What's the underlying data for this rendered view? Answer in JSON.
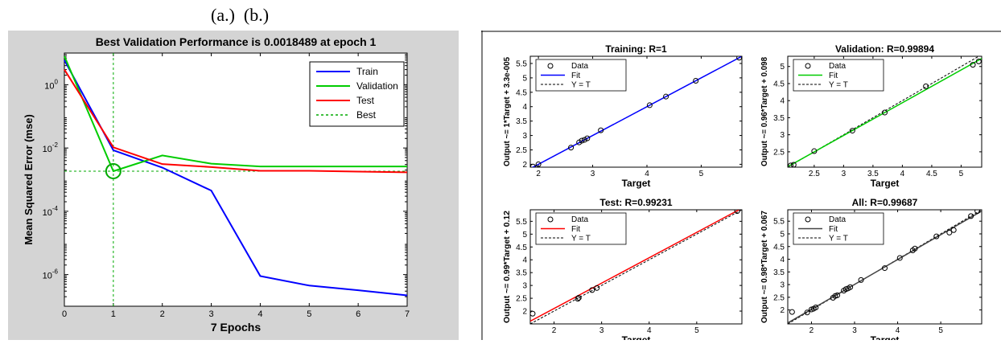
{
  "caption": "(a.)  (b.)",
  "colors": {
    "train": "#0000ff",
    "validation": "#00cc00",
    "test": "#ff0000",
    "best": "#00aa00",
    "all": "#444444",
    "panel_bg": "#d4d4d4",
    "plot_bg": "#ffffff"
  },
  "chart_data": [
    {
      "type": "line",
      "title": "Best Validation Performance is 0.0018489 at epoch 1",
      "xlabel": "7 Epochs",
      "ylabel": "Mean Squared Error  (mse)",
      "xscale": "linear",
      "yscale": "log",
      "xlim": [
        0,
        7
      ],
      "ylim": [
        1e-07,
        10
      ],
      "xticks": [
        "0",
        "1",
        "2",
        "3",
        "4",
        "5",
        "6",
        "7"
      ],
      "yticks": [
        {
          "value": 1,
          "base": "10",
          "exp": "0"
        },
        {
          "value": 0.01,
          "base": "10",
          "exp": "-2"
        },
        {
          "value": 0.0001,
          "base": "10",
          "exp": "-4"
        },
        {
          "value": 1e-06,
          "base": "10",
          "exp": "-6"
        }
      ],
      "x": [
        0,
        1,
        2,
        3,
        4,
        5,
        6,
        7
      ],
      "series": [
        {
          "name": "Train",
          "color_key": "train",
          "values": [
            6,
            0.0085,
            0.0024,
            0.00045,
            9e-07,
            4.5e-07,
            3.2e-07,
            2.2e-07
          ]
        },
        {
          "name": "Validation",
          "color_key": "validation",
          "values": [
            8,
            0.0018489,
            0.0058,
            0.0032,
            0.0026,
            0.0026,
            0.0026,
            0.0026
          ]
        },
        {
          "name": "Test",
          "color_key": "test",
          "values": [
            3,
            0.0105,
            0.0031,
            0.0025,
            0.0019,
            0.0019,
            0.0018,
            0.0017
          ]
        }
      ],
      "legend": {
        "position": "top-right",
        "entries": [
          "Train",
          "Validation",
          "Test",
          "Best"
        ]
      },
      "best": {
        "epoch": 1,
        "value": 0.0018489,
        "name": "Best"
      },
      "grid": false
    },
    {
      "type": "scatter",
      "title": "Training: R=1",
      "xlabel": "Target",
      "ylabel": "Output ~= 1*Target + 3.3e-005",
      "xlim": [
        1.85,
        5.75
      ],
      "ylim": [
        1.9,
        5.75
      ],
      "xticks": [
        2,
        3,
        4,
        5
      ],
      "yticks": [
        2,
        2.5,
        3,
        3.5,
        4,
        4.5,
        5,
        5.5
      ],
      "fit_color_key": "train",
      "fit": {
        "slope": 1,
        "intercept": 3.3e-05
      },
      "points": [
        [
          1.9,
          1.92
        ],
        [
          2.0,
          2.0
        ],
        [
          2.6,
          2.58
        ],
        [
          2.75,
          2.76
        ],
        [
          2.8,
          2.82
        ],
        [
          2.85,
          2.85
        ],
        [
          2.9,
          2.9
        ],
        [
          3.15,
          3.18
        ],
        [
          4.05,
          4.05
        ],
        [
          4.35,
          4.35
        ],
        [
          4.9,
          4.9
        ],
        [
          5.7,
          5.7
        ]
      ],
      "legend": {
        "position": "top-left",
        "entries": [
          "Data",
          "Fit",
          "Y = T"
        ]
      }
    },
    {
      "type": "scatter",
      "title": "Validation: R=0.99894",
      "xlabel": "Target",
      "ylabel": "Output ~= 0.96*Target + 0.098",
      "xlim": [
        2.05,
        5.35
      ],
      "ylim": [
        2.05,
        5.3
      ],
      "xticks": [
        2.5,
        3,
        3.5,
        4,
        4.5,
        5
      ],
      "yticks": [
        2.5,
        3,
        3.5,
        4,
        4.5,
        5
      ],
      "fit_color_key": "validation",
      "fit": {
        "slope": 0.96,
        "intercept": 0.098
      },
      "points": [
        [
          2.1,
          2.1
        ],
        [
          2.15,
          2.12
        ],
        [
          2.5,
          2.52
        ],
        [
          3.15,
          3.12
        ],
        [
          3.7,
          3.65
        ],
        [
          4.4,
          4.42
        ],
        [
          5.2,
          5.05
        ],
        [
          5.3,
          5.15
        ]
      ],
      "legend": {
        "position": "top-left",
        "entries": [
          "Data",
          "Fit",
          "Y = T"
        ]
      }
    },
    {
      "type": "scatter",
      "title": "Test: R=0.99231",
      "xlabel": "Target",
      "ylabel": "Output ~= 0.99*Target + 0.12",
      "xlim": [
        1.5,
        5.95
      ],
      "ylim": [
        1.5,
        5.95
      ],
      "xticks": [
        2,
        3,
        4,
        5
      ],
      "yticks": [
        2,
        2.5,
        3,
        3.5,
        4,
        4.5,
        5,
        5.5
      ],
      "fit_color_key": "test",
      "fit": {
        "slope": 0.99,
        "intercept": 0.12
      },
      "points": [
        [
          1.55,
          1.9
        ],
        [
          2.5,
          2.48
        ],
        [
          2.52,
          2.52
        ],
        [
          2.8,
          2.82
        ],
        [
          2.9,
          2.9
        ],
        [
          5.85,
          5.9
        ]
      ],
      "legend": {
        "position": "top-left",
        "entries": [
          "Data",
          "Fit",
          "Y = T"
        ]
      }
    },
    {
      "type": "scatter",
      "title": "All: R=0.99687",
      "xlabel": "Target",
      "ylabel": "Output ~= 0.98*Target + 0.067",
      "xlim": [
        1.45,
        5.95
      ],
      "ylim": [
        1.45,
        5.95
      ],
      "xticks": [
        2,
        3,
        4,
        5
      ],
      "yticks": [
        2,
        2.5,
        3,
        3.5,
        4,
        4.5,
        5,
        5.5
      ],
      "fit_color_key": "all",
      "fit": {
        "slope": 0.98,
        "intercept": 0.067
      },
      "points": [
        [
          1.55,
          1.92
        ],
        [
          1.9,
          1.9
        ],
        [
          2.0,
          2.02
        ],
        [
          2.05,
          2.05
        ],
        [
          2.1,
          2.1
        ],
        [
          2.5,
          2.48
        ],
        [
          2.55,
          2.55
        ],
        [
          2.6,
          2.58
        ],
        [
          2.75,
          2.76
        ],
        [
          2.8,
          2.82
        ],
        [
          2.85,
          2.85
        ],
        [
          2.9,
          2.9
        ],
        [
          3.15,
          3.18
        ],
        [
          3.7,
          3.65
        ],
        [
          4.05,
          4.05
        ],
        [
          4.35,
          4.35
        ],
        [
          4.4,
          4.42
        ],
        [
          4.9,
          4.9
        ],
        [
          5.2,
          5.05
        ],
        [
          5.3,
          5.15
        ],
        [
          5.7,
          5.7
        ],
        [
          5.85,
          5.9
        ]
      ],
      "legend": {
        "position": "top-left",
        "entries": [
          "Data",
          "Fit",
          "Y = T"
        ]
      }
    }
  ]
}
